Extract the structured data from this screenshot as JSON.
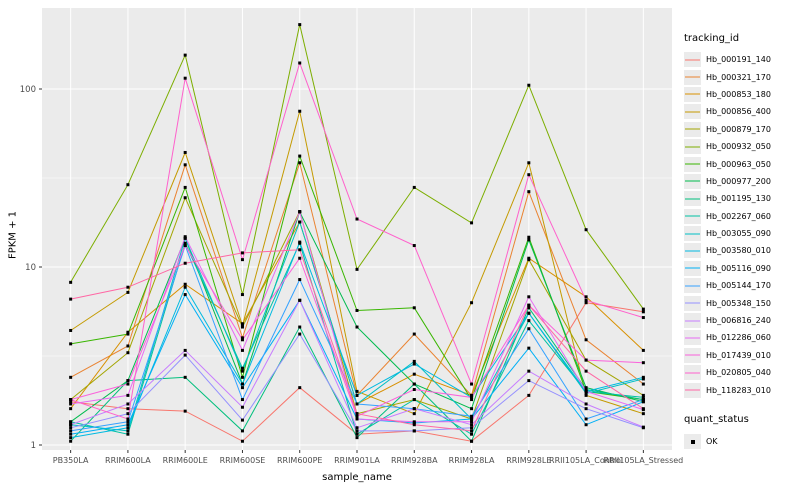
{
  "chart_data": {
    "type": "line",
    "title": "",
    "xlabel": "sample_name",
    "ylabel": "FPKM + 1",
    "yscale": "log10",
    "yticks": [
      1,
      10,
      100
    ],
    "ylim": [
      1,
      280
    ],
    "grid": true,
    "legend_position": "right",
    "legend_title": "tracking_id",
    "legend2_title": "quant_status",
    "quant_status_items": [
      {
        "label": "OK",
        "marker": "black-square"
      }
    ],
    "panel_bg": "#EBEBEB",
    "grid_color": "#FFFFFF",
    "point_color": "#000000",
    "axis_text_color": "#4D4D4D",
    "categories": [
      "PB350LA",
      "RRIM600LA",
      "RRIM600LE",
      "RRIM600SE",
      "RRIM600PE",
      "RRIM901LA",
      "RRIM928BA",
      "RRIM928LA",
      "RRIM928LE",
      "RRII105LA_Control",
      "RRII105LA_Stressed"
    ],
    "series": [
      {
        "name": "Hb_000191_140",
        "color": "#F8766D",
        "values": [
          1.75,
          1.6,
          1.55,
          1.05,
          2.1,
          1.15,
          1.2,
          1.05,
          1.9,
          6.3,
          5.6
        ]
      },
      {
        "name": "Hb_000321_170",
        "color": "#EA8331",
        "values": [
          2.4,
          3.6,
          37.5,
          4.0,
          38.5,
          1.9,
          4.2,
          1.9,
          26.5,
          3.9,
          2.2
        ]
      },
      {
        "name": "Hb_000853_180",
        "color": "#D89000",
        "values": [
          1.6,
          4.3,
          8.0,
          4.8,
          17.9,
          1.7,
          2.5,
          1.9,
          11.2,
          6.8,
          3.4
        ]
      },
      {
        "name": "Hb_000856_400",
        "color": "#C49A00",
        "values": [
          4.4,
          7.2,
          44.0,
          4.7,
          75.0,
          2.0,
          1.5,
          6.3,
          38.5,
          1.9,
          1.5
        ]
      },
      {
        "name": "Hb_000879_170",
        "color": "#A3A500",
        "values": [
          1.8,
          3.3,
          24.5,
          4.6,
          20.5,
          1.5,
          1.8,
          1.4,
          11.0,
          3.0,
          1.9
        ]
      },
      {
        "name": "Hb_000932_050",
        "color": "#7CAE00",
        "values": [
          8.2,
          29.0,
          155.0,
          7.0,
          230.0,
          9.7,
          28.0,
          17.7,
          105.0,
          16.2,
          5.8
        ]
      },
      {
        "name": "Hb_000963_050",
        "color": "#39B600",
        "values": [
          3.7,
          4.2,
          28.0,
          2.4,
          42.0,
          5.7,
          5.9,
          1.8,
          14.7,
          2.0,
          1.8
        ]
      },
      {
        "name": "Hb_000977_200",
        "color": "#00BB4E",
        "values": [
          1.35,
          2.3,
          14.5,
          2.2,
          20.4,
          4.6,
          2.2,
          1.6,
          14.2,
          2.1,
          1.75
        ]
      },
      {
        "name": "Hb_001195_130",
        "color": "#00BF7D",
        "values": [
          1.05,
          2.3,
          2.4,
          1.2,
          4.6,
          1.1,
          2.2,
          1.05,
          5.9,
          2.05,
          1.8
        ]
      },
      {
        "name": "Hb_002267_060",
        "color": "#00C1A3",
        "values": [
          1.35,
          1.15,
          13.6,
          2.7,
          13.6,
          1.15,
          1.8,
          1.15,
          5.0,
          2.0,
          1.85
        ]
      },
      {
        "name": "Hb_003055_090",
        "color": "#00BFC4",
        "values": [
          1.3,
          1.2,
          14.5,
          2.6,
          17.9,
          1.7,
          2.95,
          1.4,
          5.5,
          1.95,
          2.35
        ]
      },
      {
        "name": "Hb_003580_010",
        "color": "#00BAE0",
        "values": [
          1.1,
          1.25,
          7.7,
          2.2,
          13.8,
          1.9,
          2.85,
          1.85,
          5.5,
          2.0,
          2.4
        ]
      },
      {
        "name": "Hb_005116_090",
        "color": "#00B0F6",
        "values": [
          1.15,
          1.3,
          7.0,
          2.1,
          6.5,
          1.4,
          1.33,
          1.4,
          3.5,
          1.3,
          1.75
        ]
      },
      {
        "name": "Hb_005144_170",
        "color": "#35A2FF",
        "values": [
          1.2,
          1.35,
          13.2,
          1.8,
          8.5,
          1.7,
          1.6,
          1.45,
          4.5,
          1.4,
          1.8
        ]
      },
      {
        "name": "Hb_005348_150",
        "color": "#9590FF",
        "values": [
          1.25,
          1.5,
          3.2,
          1.38,
          4.2,
          1.2,
          1.2,
          1.25,
          2.3,
          1.6,
          1.25
        ]
      },
      {
        "name": "Hb_006816_240",
        "color": "#C77CFF",
        "values": [
          1.3,
          1.7,
          3.4,
          1.63,
          6.5,
          1.25,
          1.6,
          1.3,
          2.6,
          1.7,
          1.26
        ]
      },
      {
        "name": "Hb_012286_060",
        "color": "#E76BF3",
        "values": [
          1.7,
          1.9,
          14.8,
          3.4,
          20.4,
          1.4,
          1.35,
          1.35,
          6.8,
          2.0,
          1.58
        ]
      },
      {
        "name": "Hb_017439_010",
        "color": "#FA62DB",
        "values": [
          1.8,
          2.2,
          13.2,
          3.9,
          11.2,
          1.45,
          2.05,
          1.85,
          6.1,
          3.0,
          2.9
        ]
      },
      {
        "name": "Hb_020805_040",
        "color": "#FF61CC",
        "values": [
          1.8,
          1.4,
          115.0,
          11.0,
          140.0,
          18.6,
          13.2,
          2.2,
          33.0,
          6.5,
          5.2
        ]
      },
      {
        "name": "Hb_118283_010",
        "color": "#FF67A4",
        "values": [
          6.6,
          7.7,
          10.5,
          12.0,
          12.5,
          1.5,
          1.3,
          1.2,
          6.1,
          2.6,
          1.6
        ]
      }
    ]
  }
}
